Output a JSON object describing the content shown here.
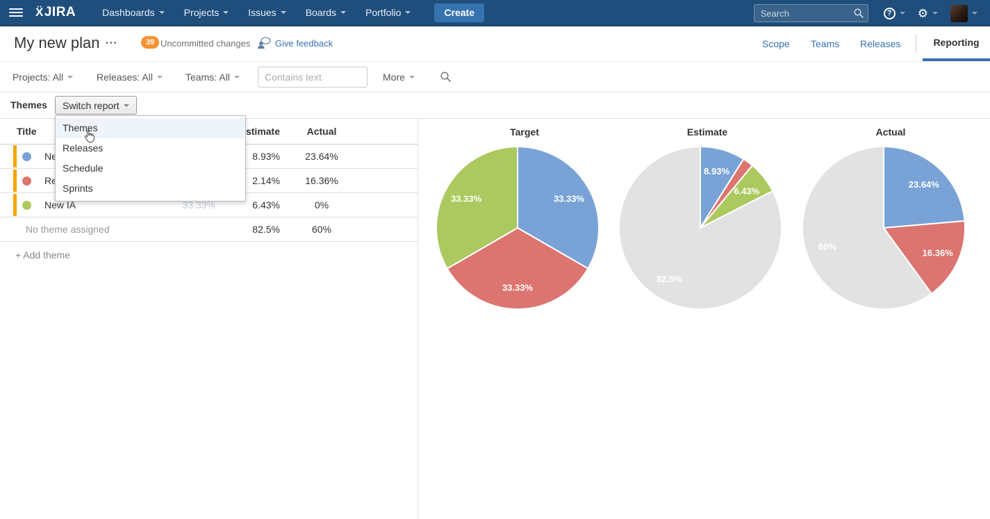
{
  "navbar": {
    "logo_mark": "Ẍ",
    "logo_text": "JIRA",
    "items": [
      "Dashboards",
      "Projects",
      "Issues",
      "Boards",
      "Portfolio"
    ],
    "create_label": "Create",
    "search_placeholder": "Search",
    "help_glyph": "?",
    "gear_glyph": "⚙",
    "bg_color": "#1f4e7c",
    "create_color": "#3572b0"
  },
  "plan_header": {
    "title": "My new plan",
    "more_glyph": "•••",
    "badge_count": "39",
    "status_text": "Uncommitted changes",
    "feedback_label": "Give feedback",
    "tabs": [
      "Scope",
      "Teams",
      "Releases"
    ],
    "active_tab": "Reporting",
    "accent_color": "#3572b0",
    "badge_color": "#f79232"
  },
  "filter_bar": {
    "projects_label": "Projects: All",
    "releases_label": "Releases: All",
    "teams_label": "Teams: All",
    "contains_placeholder": "Contains text",
    "more_label": "More"
  },
  "report_header": {
    "title": "Themes",
    "switch_label": "Switch report",
    "menu_items": [
      "Themes",
      "Releases",
      "Schedule",
      "Sprints"
    ],
    "highlighted_item": "Themes"
  },
  "themes_table": {
    "columns": [
      "Title",
      "Target",
      "Estimate",
      "Actual"
    ],
    "indicator_color": "#f6a500",
    "rows": [
      {
        "dot_color": "#79a3d6",
        "title": "Ne",
        "target": "",
        "estimate": "8.93%",
        "actual": "23.64%"
      },
      {
        "dot_color": "#dc7470",
        "title": "Re",
        "target": "",
        "estimate": "2.14%",
        "actual": "16.36%"
      },
      {
        "dot_color": "#abc95e",
        "title": "New IA",
        "target": "33.33%",
        "estimate": "6.43%",
        "actual": "0%"
      },
      {
        "dot_color": "",
        "title": "No theme assigned",
        "target": "",
        "estimate": "82.5%",
        "actual": "60%"
      }
    ],
    "add_label": "+ Add theme"
  },
  "chart_data": [
    {
      "type": "pie",
      "title": "Target",
      "slices": [
        {
          "name": "theme-blue",
          "value": 33.33,
          "label": "33.33%",
          "color": "#79a3d6"
        },
        {
          "name": "theme-red",
          "value": 33.33,
          "label": "33.33%",
          "color": "#dc7470"
        },
        {
          "name": "theme-green",
          "value": 33.34,
          "label": "33.33%",
          "color": "#abc95e"
        }
      ]
    },
    {
      "type": "pie",
      "title": "Estimate",
      "slices": [
        {
          "name": "theme-blue",
          "value": 8.93,
          "label": "8.93%",
          "color": "#79a3d6"
        },
        {
          "name": "theme-red",
          "value": 2.14,
          "label": null,
          "color": "#dc7470"
        },
        {
          "name": "theme-green",
          "value": 6.43,
          "label": "6.43%",
          "color": "#abc95e"
        },
        {
          "name": "unassigned",
          "value": 82.5,
          "label": "82.5%",
          "color": "#e2e2e2"
        }
      ]
    },
    {
      "type": "pie",
      "title": "Actual",
      "slices": [
        {
          "name": "theme-blue",
          "value": 23.64,
          "label": "23.64%",
          "color": "#79a3d6"
        },
        {
          "name": "theme-red",
          "value": 16.36,
          "label": "16.36%",
          "color": "#dc7470"
        },
        {
          "name": "theme-green",
          "value": 0,
          "label": null,
          "color": "#abc95e"
        },
        {
          "name": "unassigned",
          "value": 60,
          "label": "60%",
          "color": "#e2e2e2"
        }
      ]
    }
  ]
}
